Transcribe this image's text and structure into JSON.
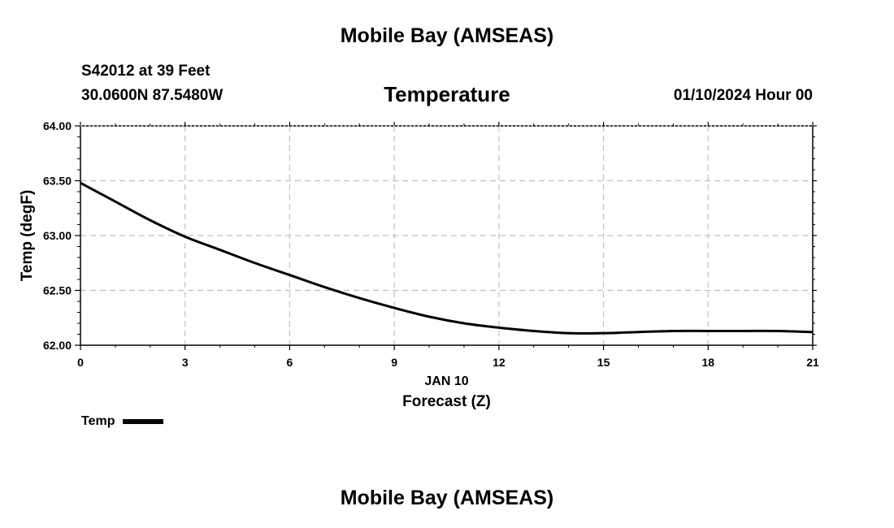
{
  "header": {
    "title": "Mobile Bay (AMSEAS)",
    "station": "S42012 at 39 Feet",
    "coordinates": "30.0600N  87.5480W",
    "chart_title": "Temperature",
    "date": "01/10/2024 Hour 00"
  },
  "footer": {
    "title": "Mobile Bay (AMSEAS)"
  },
  "chart_data": {
    "type": "line",
    "title": "Temperature",
    "xlabel": "Forecast (Z)",
    "xlabel_date": "JAN 10",
    "ylabel": "Temp (degF)",
    "xlim": [
      0,
      21
    ],
    "ylim": [
      62.0,
      64.0
    ],
    "x_ticks": [
      0,
      3,
      6,
      9,
      12,
      15,
      18,
      21
    ],
    "x_tick_labels": [
      "0",
      "3",
      "6",
      "9",
      "12",
      "15",
      "18",
      "21"
    ],
    "y_ticks": [
      62.0,
      62.5,
      63.0,
      63.5,
      64.0
    ],
    "y_tick_labels": [
      "62.00",
      "62.50",
      "63.00",
      "63.50",
      "64.00"
    ],
    "grid": true,
    "legend_position": "bottom-left",
    "series": [
      {
        "name": "Temp",
        "color": "#000000",
        "x": [
          0,
          1,
          2,
          3,
          4,
          5,
          6,
          7,
          8,
          9,
          10,
          11,
          12,
          13,
          14,
          15,
          16,
          17,
          18,
          19,
          20,
          21
        ],
        "values": [
          63.48,
          63.31,
          63.14,
          62.99,
          62.87,
          62.75,
          62.64,
          62.53,
          62.43,
          62.34,
          62.26,
          62.2,
          62.16,
          62.13,
          62.11,
          62.11,
          62.12,
          62.13,
          62.13,
          62.13,
          62.13,
          62.12
        ]
      }
    ]
  }
}
